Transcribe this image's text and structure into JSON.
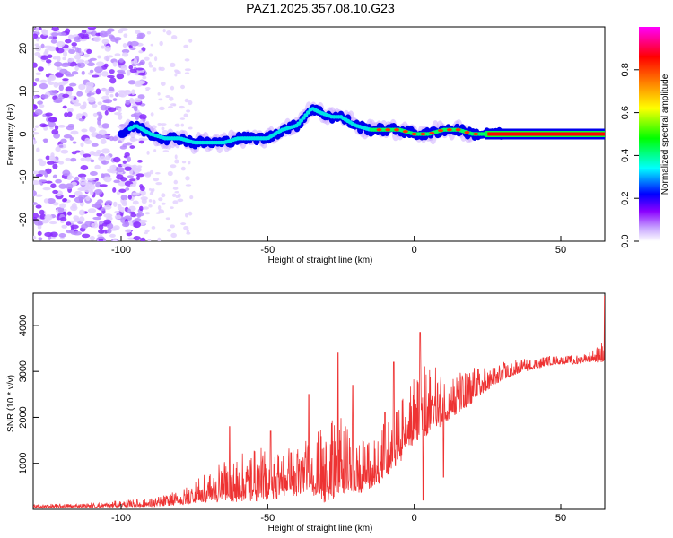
{
  "title": "PAZ1.2025.357.08.10.G23",
  "chart_data": [
    {
      "type": "heatmap",
      "xlabel": "Height of straight line (km)",
      "ylabel": "Frequency (Hz)",
      "xlim": [
        -130,
        65
      ],
      "ylim": [
        -25,
        25
      ],
      "xticks": [
        -100,
        -50,
        0,
        50
      ],
      "yticks": [
        -20,
        -10,
        0,
        10,
        20
      ],
      "colorbar": {
        "label": "Normalized spectral amplitude",
        "range": [
          0.0,
          1.0
        ],
        "ticks": [
          "0.0",
          "0.2",
          "0.4",
          "0.6",
          "0.8"
        ],
        "colors": [
          "#ffffff",
          "#8a00ff",
          "#0000ff",
          "#00ffff",
          "#00ff00",
          "#ffff00",
          "#ff8000",
          "#ff0000",
          "#ff00ff"
        ]
      },
      "ridge": {
        "x": [
          -100,
          -95,
          -90,
          -85,
          -80,
          -75,
          -70,
          -65,
          -60,
          -55,
          -50,
          -45,
          -40,
          -35,
          -32,
          -28,
          -25,
          -20,
          -15,
          -10,
          -5,
          0,
          5,
          10,
          15,
          20,
          25,
          30,
          40,
          50,
          60,
          65
        ],
        "y": [
          0,
          2,
          0,
          -1,
          -1,
          -2,
          -2,
          -2,
          -1,
          -1,
          -1,
          1,
          2,
          6,
          5,
          4,
          4,
          2,
          1,
          1,
          1,
          0,
          0,
          1,
          1,
          0,
          0,
          0,
          0,
          0,
          0,
          0
        ]
      }
    },
    {
      "type": "line",
      "xlabel": "Height of straight line (km)",
      "ylabel": "SNR (10 * v/v)",
      "xlim": [
        -130,
        65
      ],
      "ylim": [
        0,
        4700
      ],
      "xticks": [
        -100,
        -50,
        0,
        50
      ],
      "yticks": [
        1000,
        2000,
        3000,
        4000
      ],
      "color": "#ee3333",
      "envelope": {
        "x": [
          -130,
          -110,
          -90,
          -80,
          -75,
          -70,
          -65,
          -60,
          -55,
          -50,
          -45,
          -40,
          -35,
          -30,
          -25,
          -20,
          -15,
          -10,
          -5,
          0,
          5,
          10,
          15,
          20,
          25,
          30,
          35,
          40,
          45,
          50,
          55,
          60,
          65
        ],
        "base": [
          50,
          60,
          100,
          150,
          250,
          300,
          350,
          400,
          450,
          450,
          500,
          550,
          600,
          500,
          700,
          600,
          700,
          900,
          1300,
          1800,
          2000,
          2100,
          2300,
          2500,
          2700,
          2900,
          3000,
          3100,
          3150,
          3200,
          3200,
          3250,
          3300
        ],
        "spread": [
          60,
          80,
          150,
          250,
          400,
          500,
          700,
          800,
          900,
          900,
          900,
          900,
          1000,
          1400,
          1300,
          1000,
          800,
          1000,
          1000,
          1200,
          1200,
          900,
          700,
          600,
          400,
          300,
          250,
          200,
          200,
          150,
          150,
          200,
          400
        ]
      },
      "spikes": [
        {
          "x": -63,
          "y": 1800
        },
        {
          "x": -49,
          "y": 1700
        },
        {
          "x": -36,
          "y": 2500
        },
        {
          "x": -26,
          "y": 3400
        },
        {
          "x": -21,
          "y": 2700
        },
        {
          "x": -10,
          "y": 2100
        },
        {
          "x": -7,
          "y": 3200
        },
        {
          "x": 2,
          "y": 3850
        },
        {
          "x": 10,
          "y": 2900
        },
        {
          "x": 65,
          "y": 4650
        }
      ],
      "dips": [
        {
          "x": 3,
          "y": 200
        },
        {
          "x": 10,
          "y": 700
        }
      ]
    }
  ]
}
